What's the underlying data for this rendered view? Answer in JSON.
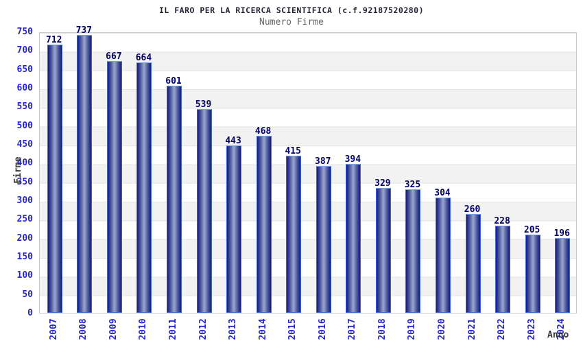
{
  "chart_data": {
    "type": "bar",
    "title": "IL FARO PER LA RICERCA SCIENTIFICA (c.f.92187520280)",
    "subtitle": "Numero Firme",
    "xlabel": "Anno",
    "ylabel": "Firme",
    "categories": [
      "2007",
      "2008",
      "2009",
      "2010",
      "2011",
      "2012",
      "2013",
      "2014",
      "2015",
      "2016",
      "2017",
      "2018",
      "2019",
      "2020",
      "2021",
      "2022",
      "2023",
      "2024"
    ],
    "values": [
      712,
      737,
      667,
      664,
      601,
      539,
      443,
      468,
      415,
      387,
      394,
      329,
      325,
      304,
      260,
      228,
      205,
      196
    ],
    "ylim": [
      0,
      750
    ],
    "ytick_step": 50,
    "yticks": [
      0,
      50,
      100,
      150,
      200,
      250,
      300,
      350,
      400,
      450,
      500,
      550,
      600,
      650,
      700,
      750
    ],
    "grid": "horizontal-bands-alternating",
    "legend": "none",
    "colors": {
      "bar_edge": "#161b6e",
      "bar_center": "#9ba4d0",
      "bar_outline": "#3f68d8",
      "value_label": "#000066",
      "tick_label": "#2626cc",
      "title": "#222233",
      "subtitle": "#666666",
      "axis_title": "#333333",
      "stripe": "#f2f2f2",
      "gridline": "#e3e3e3",
      "plot_border": "#c9c9c9"
    }
  }
}
